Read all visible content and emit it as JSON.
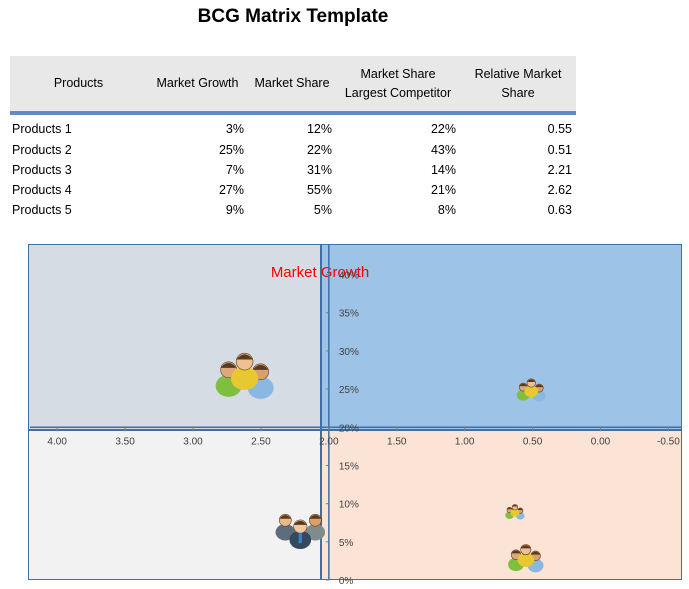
{
  "page": {
    "title": "BCG Matrix Template"
  },
  "table": {
    "headers": {
      "products": "Products",
      "market_growth": "Market Growth",
      "market_share": "Market Share",
      "market_share_competitor_1": "Market Share",
      "market_share_competitor_2": "Largest Competitor",
      "relative_share_1": "Relative Market",
      "relative_share_2": "Share"
    },
    "rows": [
      {
        "name": "Products 1",
        "growth": "3%",
        "share": "12%",
        "competitor": "22%",
        "relative": "0.55"
      },
      {
        "name": "Products 2",
        "growth": "25%",
        "share": "22%",
        "competitor": "43%",
        "relative": "0.51"
      },
      {
        "name": "Products 3",
        "growth": "7%",
        "share": "31%",
        "competitor": "14%",
        "relative": "2.21"
      },
      {
        "name": "Products 4",
        "growth": "27%",
        "share": "55%",
        "competitor": "21%",
        "relative": "2.62"
      },
      {
        "name": "Products 5",
        "growth": "9%",
        "share": "5%",
        "competitor": "8%",
        "relative": "0.63"
      }
    ]
  },
  "colors": {
    "quadrant_top_left": "#d6dce4",
    "quadrant_top_right": "#9dc3e6",
    "quadrant_bottom_left": "#f2f2f2",
    "quadrant_bottom_right": "#fbe4d5",
    "axis": "#3f6fa5",
    "chart_title": "#ff0000"
  },
  "chart_data": {
    "type": "scatter",
    "title": "Market Growth",
    "x_axis": {
      "reversed": true,
      "range": [
        -0.6,
        4.2
      ],
      "crosses_at": 2.0,
      "ticks": [
        4.0,
        3.5,
        3.0,
        2.5,
        2.0,
        1.5,
        1.0,
        0.5,
        0.0,
        -0.5
      ],
      "tick_labels": [
        "4.00",
        "3.50",
        "3.00",
        "2.50",
        "2.00",
        "1.50",
        "1.00",
        "0.50",
        "0.00",
        "-0.50"
      ]
    },
    "y_axis": {
      "range": [
        0,
        0.44
      ],
      "crosses_at": 0.2,
      "ticks": [
        0,
        0.05,
        0.1,
        0.15,
        0.2,
        0.25,
        0.3,
        0.35,
        0.4
      ],
      "tick_labels": [
        "0%",
        "5%",
        "10%",
        "15%",
        "20%",
        "25%",
        "30%",
        "35%",
        "40%"
      ]
    },
    "grid": false,
    "points": [
      {
        "label": "Products 1",
        "x": 0.55,
        "y": 0.03,
        "icon": "people-group-icon"
      },
      {
        "label": "Products 2",
        "x": 0.51,
        "y": 0.25,
        "icon": "people-group-icon"
      },
      {
        "label": "Products 3",
        "x": 2.21,
        "y": 0.07,
        "icon": "business-team-icon"
      },
      {
        "label": "Products 4",
        "x": 2.62,
        "y": 0.27,
        "icon": "people-group-icon"
      },
      {
        "label": "Products 5",
        "x": 0.63,
        "y": 0.09,
        "icon": "people-group-icon"
      }
    ]
  }
}
